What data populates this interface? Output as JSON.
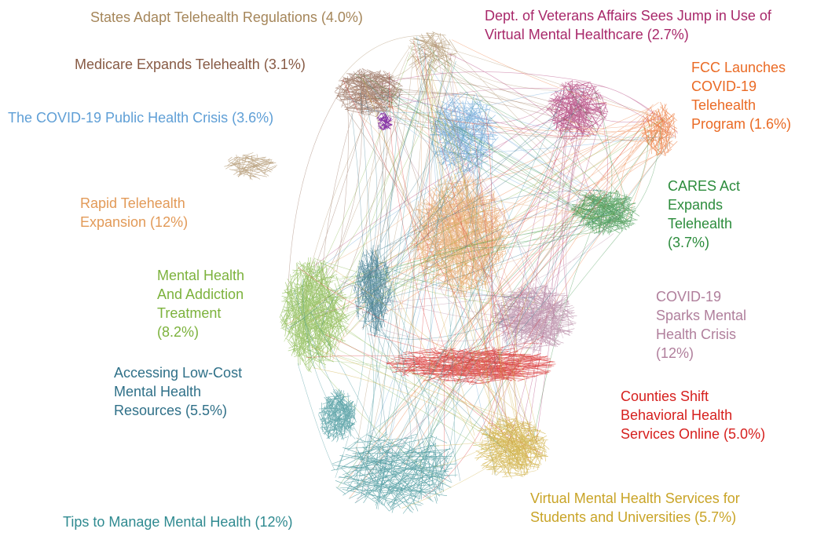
{
  "clusters": [
    {
      "lines": [
        "States Adapt Telehealth Regulations (4.0%)"
      ],
      "color": "#a5865a"
    },
    {
      "lines": [
        "Dept. of Veterans Affairs Sees Jump in Use of",
        "Virtual Mental Healthcare (2.7%)"
      ],
      "color": "#a8286a"
    },
    {
      "lines": [
        "Medicare Expands Telehealth (3.1%)"
      ],
      "color": "#875a44"
    },
    {
      "lines": [
        "The COVID-19 Public Health Crisis (3.6%)"
      ],
      "color": "#5f9fd6"
    },
    {
      "lines": [
        "FCC Launches",
        "COVID-19",
        "Telehealth",
        "Program (1.6%)"
      ],
      "color": "#ea6a24"
    },
    {
      "lines": [
        "Rapid Telehealth",
        "Expansion (12%)"
      ],
      "color": "#e29a58"
    },
    {
      "lines": [
        "CARES Act",
        "Expands",
        "Telehealth",
        "(3.7%)"
      ],
      "color": "#2c8c3c"
    },
    {
      "lines": [
        "Mental Health",
        "And Addiction",
        "Treatment",
        "(8.2%)"
      ],
      "color": "#7cb23c"
    },
    {
      "lines": [
        "COVID-19",
        "Sparks Mental",
        "Health Crisis",
        "(12%)"
      ],
      "color": "#b07f9c"
    },
    {
      "lines": [
        "Accessing Low-Cost",
        "Mental Health",
        "Resources (5.5%)"
      ],
      "color": "#2f7088"
    },
    {
      "lines": [
        "Counties Shift",
        "Behavioral Health",
        "Services Online (5.0%)"
      ],
      "color": "#d6201e"
    },
    {
      "lines": [
        "Tips to Manage Mental Health (12%)"
      ],
      "color": "#2f8a90"
    },
    {
      "lines": [
        "Virtual Mental Health Services for",
        "Students and Universities (5.7%)"
      ],
      "color": "#c9a427"
    }
  ]
}
